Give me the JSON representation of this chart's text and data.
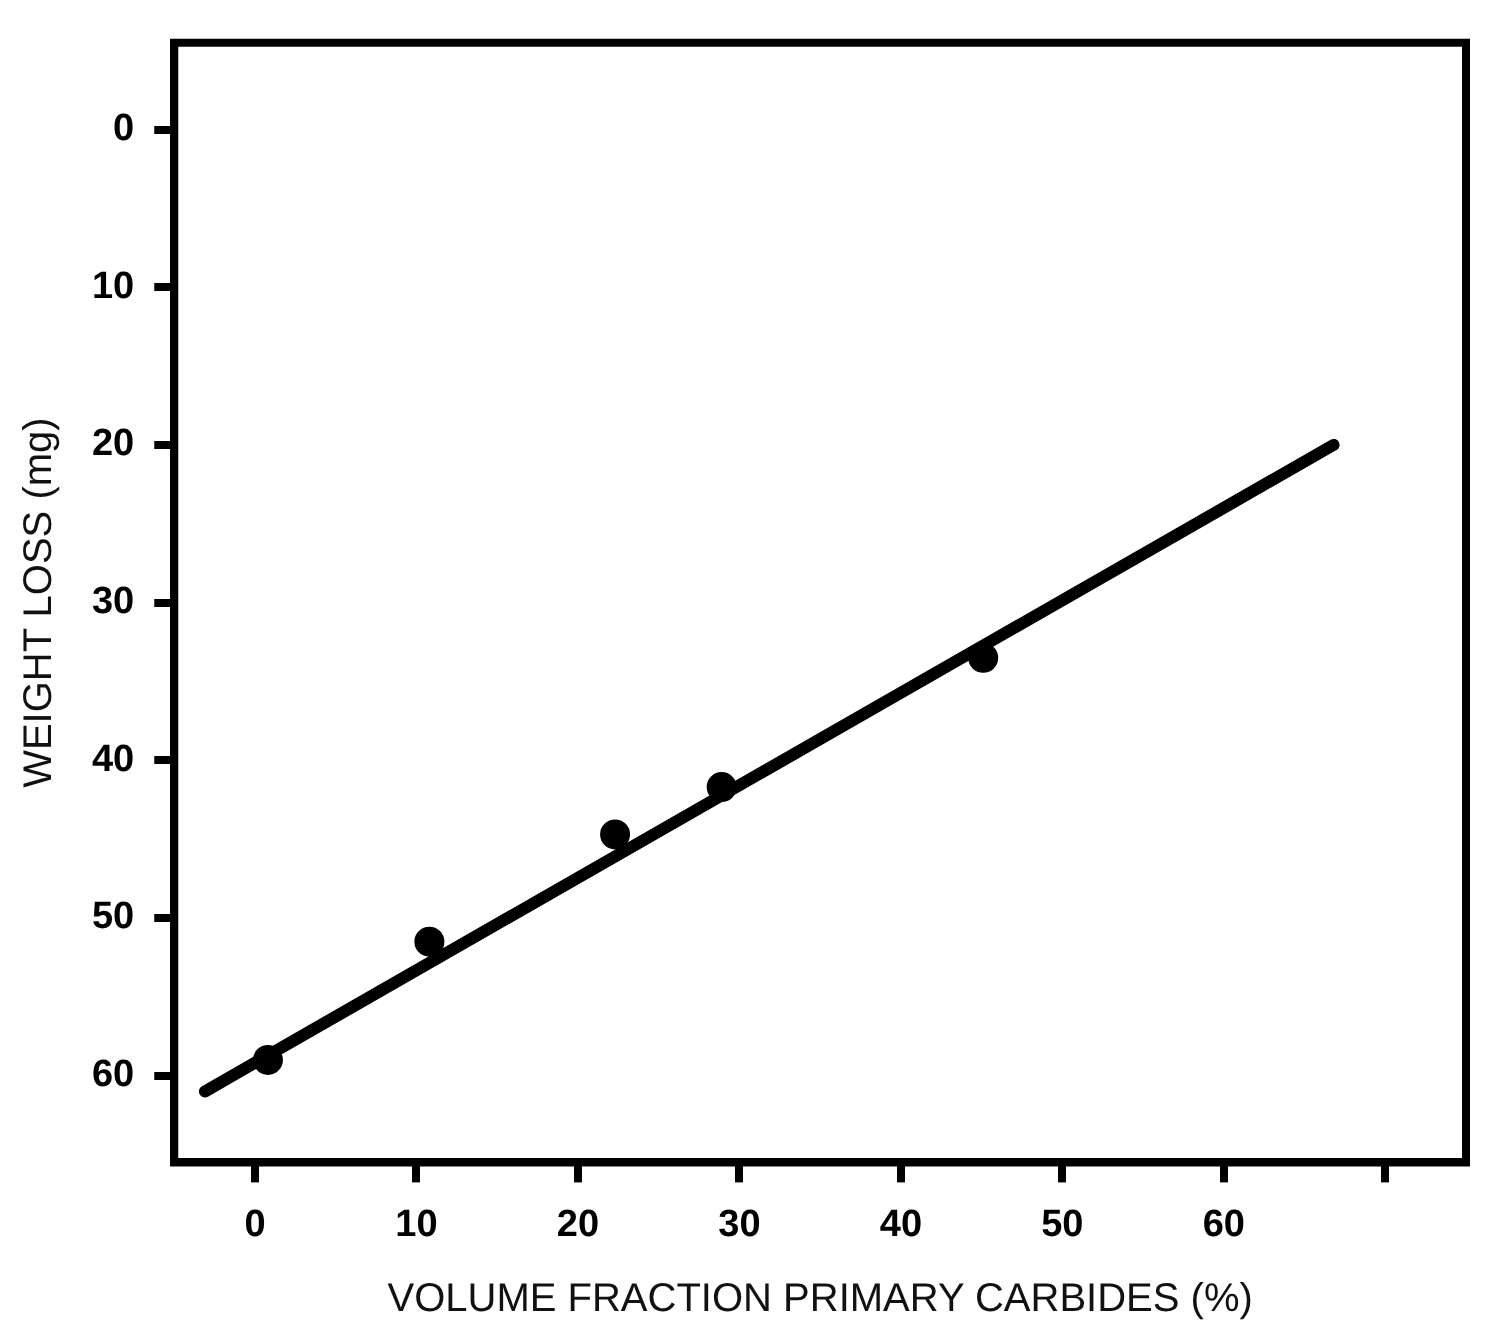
{
  "chart_data": {
    "type": "scatter",
    "xlabel": "VOLUME FRACTION PRIMARY CARBIDES (%)",
    "ylabel": "WEIGHT LOSS (mg)",
    "xlim": [
      -5,
      75
    ],
    "ylim": [
      65.5,
      -5.5
    ],
    "xticks": [
      0,
      10,
      20,
      30,
      40,
      50,
      60,
      {
        "value": 70,
        "label": null
      }
    ],
    "yticks": [
      0,
      10,
      20,
      30,
      40,
      50,
      60
    ],
    "grid": false,
    "legend": false,
    "marker": "circle",
    "series": [
      {
        "color": "#000000",
        "x": [
          0.8,
          10.8,
          22.3,
          28.9,
          45.1
        ],
        "values": [
          59.0,
          51.5,
          44.7,
          41.7,
          33.5
        ]
      },
      {
        "type": "line",
        "color": "#000000",
        "x": [
          -3.1,
          66.8
        ],
        "values": [
          61.0,
          20.0
        ],
        "marker": "none",
        "line_style": "solid"
      }
    ]
  }
}
